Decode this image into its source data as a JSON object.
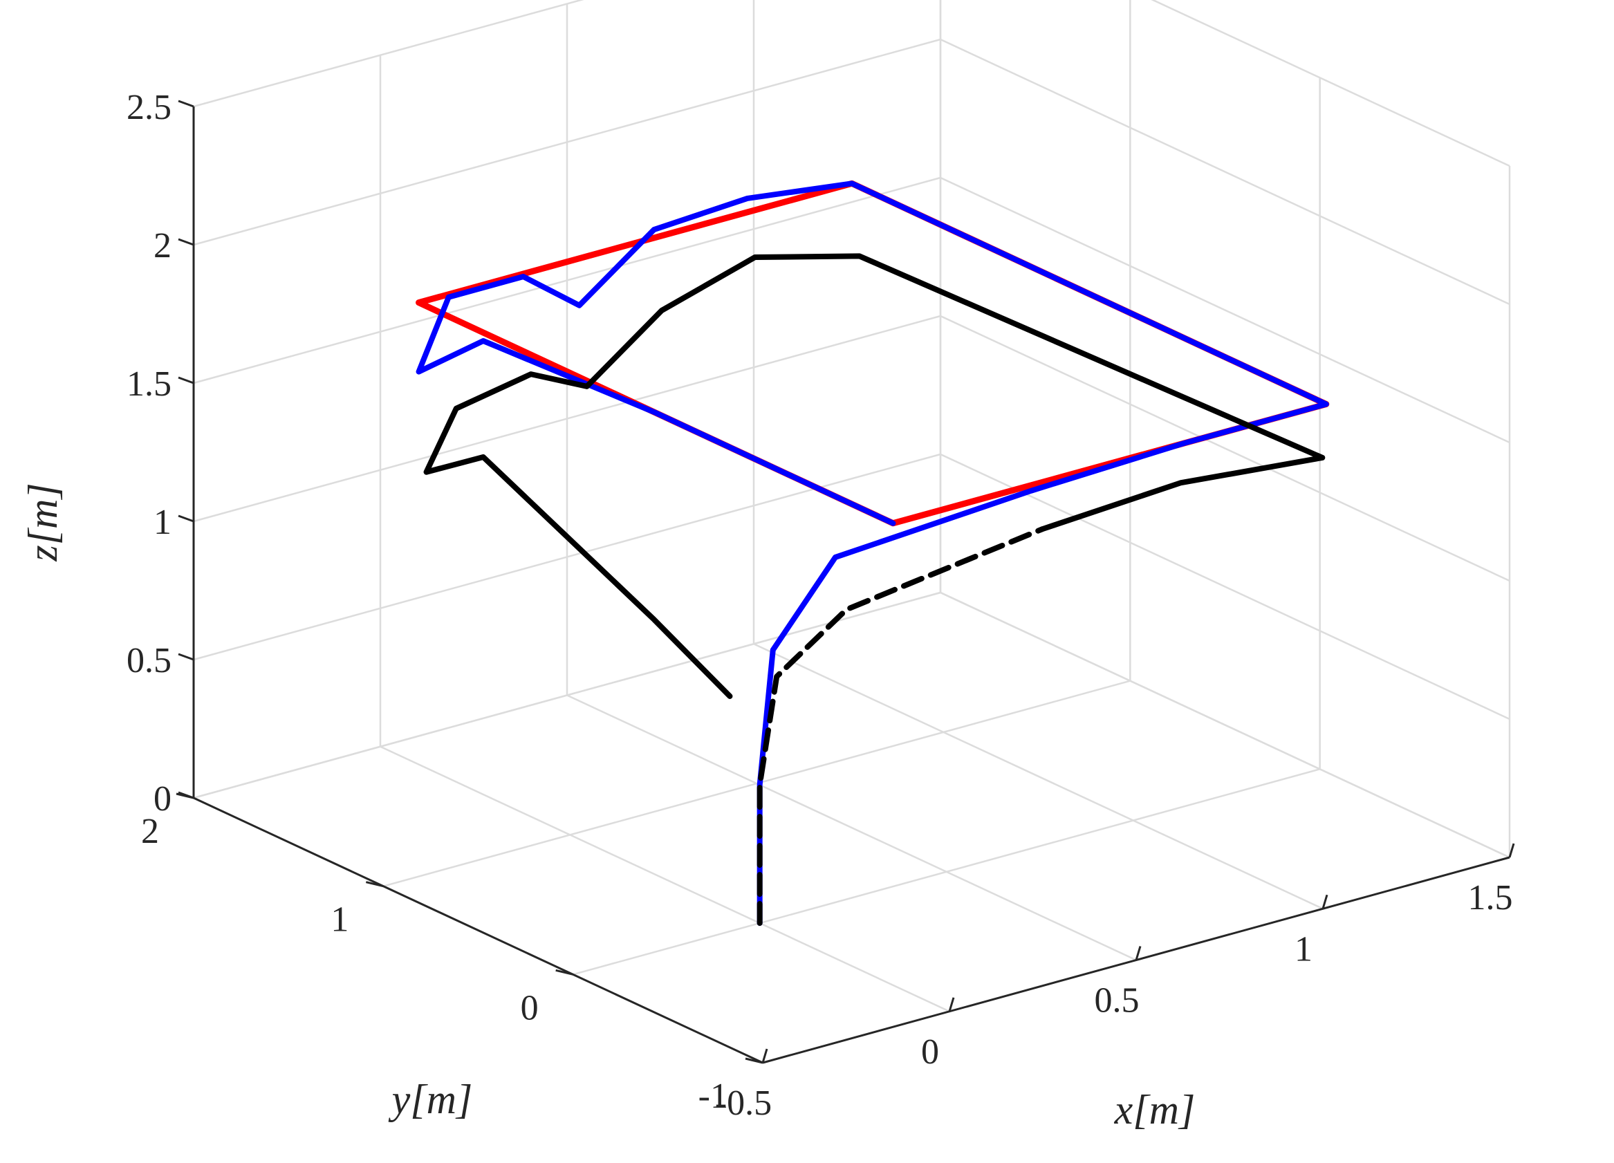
{
  "chart_data": {
    "type": "line3d",
    "title": "",
    "xlabel": "x[m]",
    "ylabel": "y[m]",
    "zlabel": "z[m]",
    "xlim": [
      -0.5,
      1.5
    ],
    "ylim": [
      -1,
      2
    ],
    "zlim": [
      0,
      2.5
    ],
    "xticks": [
      "-0.5",
      "0",
      "0.5",
      "1",
      "1.5"
    ],
    "yticks": [
      "-1",
      "0",
      "1",
      "2"
    ],
    "zticks": [
      "0",
      "0.5",
      "1",
      "1.5",
      "2",
      "2.5"
    ],
    "grid": true,
    "legend": "none",
    "colors": {
      "reference": "#ff0000",
      "tracked": "#0000ff",
      "actual": "#000000"
    },
    "series": [
      {
        "style": "solid",
        "color": "#ff0000",
        "points": [
          [
            -0.08,
            -0.86,
            1.75
          ],
          [
            1.08,
            -0.86,
            1.75
          ],
          [
            1.08,
            1.64,
            1.75
          ],
          [
            -0.08,
            1.64,
            1.75
          ],
          [
            -0.08,
            -0.86,
            1.75
          ]
        ]
      },
      {
        "style": "solid",
        "color": "#0000ff",
        "points": [
          [
            0,
            0,
            0
          ],
          [
            0,
            0,
            0.5
          ],
          [
            0.01,
            -0.05,
            1.0
          ],
          [
            0.05,
            -0.3,
            1.4
          ],
          [
            0.3,
            -0.84,
            1.72
          ],
          [
            0.7,
            -0.86,
            1.75
          ],
          [
            1.08,
            -0.86,
            1.75
          ],
          [
            1.08,
            0.4,
            1.75
          ],
          [
            1.08,
            1.64,
            1.75
          ],
          [
            0.8,
            1.64,
            1.8
          ],
          [
            0.55,
            1.64,
            1.78
          ],
          [
            0.35,
            1.64,
            1.58
          ],
          [
            0.2,
            1.64,
            1.74
          ],
          [
            0.0,
            1.64,
            1.74
          ],
          [
            -0.08,
            1.64,
            1.5
          ],
          [
            -0.08,
            1.3,
            1.72
          ],
          [
            -0.08,
            0.4,
            1.75
          ],
          [
            -0.08,
            -0.86,
            1.75
          ]
        ]
      },
      {
        "style": "dashed",
        "color": "#000000",
        "points": [
          [
            0,
            0,
            0
          ],
          [
            0,
            0,
            0.5
          ],
          [
            0.02,
            -0.05,
            0.9
          ],
          [
            0.08,
            -0.3,
            1.2
          ],
          [
            0.35,
            -0.8,
            1.55
          ]
        ]
      },
      {
        "style": "solid",
        "color": "#000000",
        "points": [
          [
            0.35,
            -0.8,
            1.55
          ],
          [
            0.7,
            -0.84,
            1.6
          ],
          [
            1.08,
            -0.84,
            1.55
          ],
          [
            1.08,
            1.6,
            1.5
          ],
          [
            0.8,
            1.6,
            1.6
          ],
          [
            0.55,
            1.6,
            1.5
          ],
          [
            0.35,
            1.6,
            1.3
          ],
          [
            0.2,
            1.6,
            1.4
          ],
          [
            0.0,
            1.6,
            1.35
          ],
          [
            -0.08,
            1.6,
            1.15
          ],
          [
            -0.08,
            1.3,
            1.3
          ],
          [
            -0.08,
            0.4,
            1.0
          ],
          [
            -0.08,
            0.0,
            0.85
          ]
        ]
      }
    ]
  }
}
